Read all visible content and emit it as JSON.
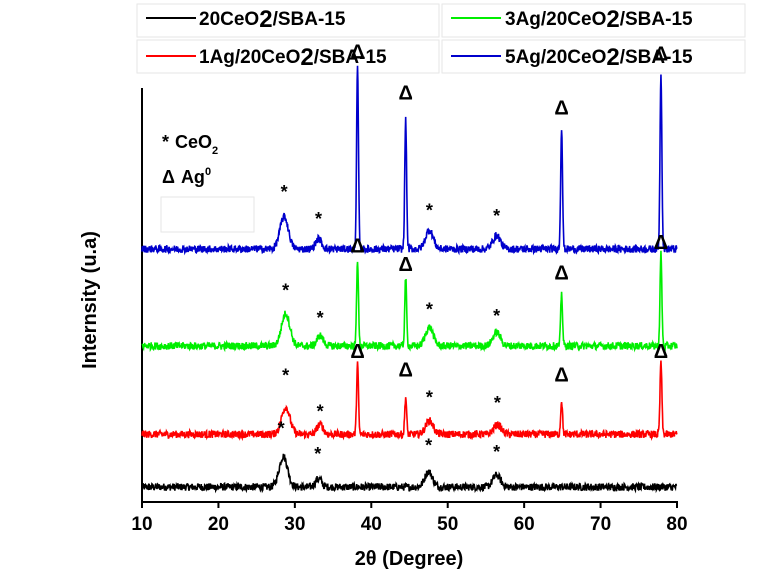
{
  "chart_data": {
    "type": "line",
    "xlabel": "2θ (Degree)",
    "ylabel": "Internsity (u.a)",
    "xlim": [
      10,
      80
    ],
    "xticks": [
      10,
      20,
      30,
      40,
      50,
      60,
      70,
      80
    ],
    "grid": false,
    "legend_position": "top",
    "series": [
      {
        "name": "20CeO2/SBA-15",
        "label_main": "20CeO",
        "label_sub": "2",
        "label_end": "/SBA-15",
        "color": "#000000",
        "baseline": 0.0,
        "peaks": [
          {
            "x": 28.5,
            "h": 0.9,
            "w": 0.55
          },
          {
            "x": 33.1,
            "h": 0.25,
            "w": 0.4
          },
          {
            "x": 47.5,
            "h": 0.45,
            "w": 0.5
          },
          {
            "x": 56.4,
            "h": 0.35,
            "w": 0.5
          }
        ],
        "markers": [
          {
            "x": 28.2,
            "symbol": "*",
            "level": 1.55
          },
          {
            "x": 33.0,
            "symbol": "*",
            "level": 0.8
          },
          {
            "x": 47.5,
            "symbol": "*",
            "level": 1.05
          },
          {
            "x": 56.4,
            "symbol": "*",
            "level": 0.85
          }
        ]
      },
      {
        "name": "1Ag/20CeO2/SBA-15",
        "label_main": "1Ag/20CeO",
        "label_sub": "2",
        "label_end": "/SBA-15",
        "color": "#ff0000",
        "baseline": 1.55,
        "peaks": [
          {
            "x": 28.8,
            "h": 0.8,
            "w": 0.55
          },
          {
            "x": 33.3,
            "h": 0.3,
            "w": 0.4
          },
          {
            "x": 38.2,
            "h": 2.1,
            "w": 0.12
          },
          {
            "x": 44.5,
            "h": 1.1,
            "w": 0.12
          },
          {
            "x": 47.6,
            "h": 0.4,
            "w": 0.5
          },
          {
            "x": 56.5,
            "h": 0.28,
            "w": 0.5
          },
          {
            "x": 64.9,
            "h": 1.0,
            "w": 0.12
          },
          {
            "x": 77.9,
            "h": 2.15,
            "w": 0.12
          }
        ],
        "markers": [
          {
            "x": 28.8,
            "symbol": "*",
            "level": 1.55
          },
          {
            "x": 33.3,
            "symbol": "*",
            "level": 0.5
          },
          {
            "x": 38.2,
            "symbol": "Δ",
            "level": 2.25
          },
          {
            "x": 44.5,
            "symbol": "Δ",
            "level": 1.7
          },
          {
            "x": 47.6,
            "symbol": "*",
            "level": 0.9
          },
          {
            "x": 56.5,
            "symbol": "*",
            "level": 0.75
          },
          {
            "x": 64.9,
            "symbol": "Δ",
            "level": 1.55
          },
          {
            "x": 77.9,
            "symbol": "Δ",
            "level": 2.25
          }
        ]
      },
      {
        "name": "3Ag/20CeO2/SBA-15",
        "label_main": "3Ag/20CeO",
        "label_sub": "2",
        "label_end": "/SBA-15",
        "color": "#00ee00",
        "baseline": 4.15,
        "peaks": [
          {
            "x": 28.8,
            "h": 0.95,
            "w": 0.55
          },
          {
            "x": 33.3,
            "h": 0.3,
            "w": 0.4
          },
          {
            "x": 38.2,
            "h": 2.55,
            "w": 0.12
          },
          {
            "x": 44.5,
            "h": 2.0,
            "w": 0.12
          },
          {
            "x": 47.6,
            "h": 0.55,
            "w": 0.5
          },
          {
            "x": 56.4,
            "h": 0.4,
            "w": 0.5
          },
          {
            "x": 64.9,
            "h": 1.55,
            "w": 0.12
          },
          {
            "x": 77.9,
            "h": 2.7,
            "w": 0.12
          }
        ],
        "markers": [
          {
            "x": 28.8,
            "symbol": "*",
            "level": 1.45
          },
          {
            "x": 33.3,
            "symbol": "*",
            "level": 0.65
          },
          {
            "x": 38.2,
            "symbol": "Δ",
            "level": 2.75
          },
          {
            "x": 44.5,
            "symbol": "Δ",
            "level": 2.2
          },
          {
            "x": 47.6,
            "symbol": "*",
            "level": 0.9
          },
          {
            "x": 56.4,
            "symbol": "*",
            "level": 0.7
          },
          {
            "x": 64.9,
            "symbol": "Δ",
            "level": 1.95
          },
          {
            "x": 77.9,
            "symbol": "Δ",
            "level": 2.85
          }
        ]
      },
      {
        "name": "5Ag/20CeO2/SBA-15",
        "label_main": "5Ag/20CeO",
        "label_sub": "2",
        "label_end": "/SBA-15",
        "color": "#0000cc",
        "baseline": 7.0,
        "peaks": [
          {
            "x": 28.6,
            "h": 0.95,
            "w": 0.55
          },
          {
            "x": 33.1,
            "h": 0.3,
            "w": 0.4
          },
          {
            "x": 38.2,
            "h": 5.35,
            "w": 0.12
          },
          {
            "x": 44.5,
            "h": 3.8,
            "w": 0.12
          },
          {
            "x": 47.6,
            "h": 0.55,
            "w": 0.5
          },
          {
            "x": 56.4,
            "h": 0.4,
            "w": 0.5
          },
          {
            "x": 64.9,
            "h": 3.6,
            "w": 0.12
          },
          {
            "x": 77.9,
            "h": 5.2,
            "w": 0.12
          }
        ],
        "markers": [
          {
            "x": 28.6,
            "symbol": "*",
            "level": 1.5
          },
          {
            "x": 33.1,
            "symbol": "*",
            "level": 0.7
          },
          {
            "x": 38.2,
            "symbol": "Δ",
            "level": 5.6
          },
          {
            "x": 44.5,
            "symbol": "Δ",
            "level": 4.4
          },
          {
            "x": 47.6,
            "symbol": "*",
            "level": 0.95
          },
          {
            "x": 56.4,
            "symbol": "*",
            "level": 0.8
          },
          {
            "x": 64.9,
            "symbol": "Δ",
            "level": 3.95
          },
          {
            "x": 77.9,
            "symbol": "Δ",
            "level": 5.55
          }
        ]
      }
    ],
    "annotations": [
      {
        "symbol": "*",
        "text": "CeO",
        "sub": "2"
      },
      {
        "symbol": "Δ",
        "text": "Ag",
        "sup": "0"
      }
    ]
  }
}
